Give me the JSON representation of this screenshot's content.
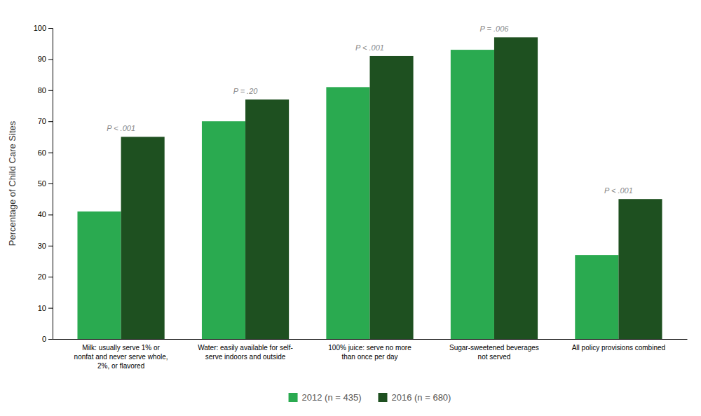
{
  "chart_data": {
    "type": "bar",
    "categories": [
      "Milk: usually serve 1% or\nnonfat and never serve whole,\n2%, or flavored",
      "Water: easily available for self-\nserve indoors and outside",
      "100% juice: serve no more\nthan once per day",
      "Sugar-sweetened beverages\nnot served",
      "All policy provisions combined"
    ],
    "series": [
      {
        "name": "2012 (n = 435)",
        "color": "#2aaa50",
        "values": [
          41,
          70,
          81,
          93,
          27
        ]
      },
      {
        "name": "2016 (n = 680)",
        "color": "#1e5020",
        "values": [
          65,
          77,
          91,
          97,
          45
        ]
      }
    ],
    "annotations": [
      "P < .001",
      "P = .20",
      "P < .001",
      "P = .006",
      "P < .001"
    ],
    "ylabel": "Percentage of Child Care Sites",
    "ylim": [
      0,
      100
    ],
    "yticks": [
      0,
      10,
      20,
      30,
      40,
      50,
      60,
      70,
      80,
      90,
      100
    ],
    "grid": false,
    "legend": "bottom"
  }
}
